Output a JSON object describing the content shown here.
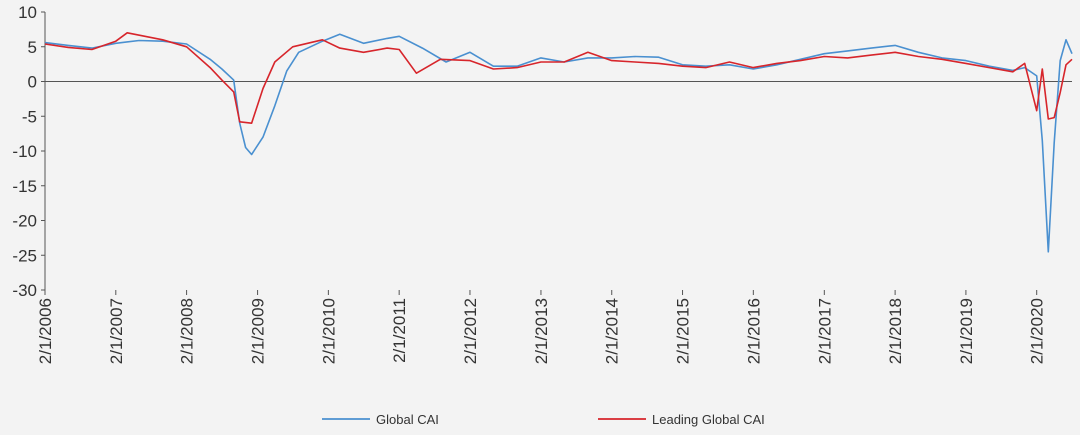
{
  "chart_data": {
    "type": "line",
    "title": "",
    "xlabel": "",
    "ylabel": "",
    "ylim": [
      -30,
      10
    ],
    "yticks": [
      10,
      5,
      0,
      -5,
      -10,
      -15,
      -20,
      -25,
      -30
    ],
    "xlim": [
      "2006-02-01",
      "2020-08-01"
    ],
    "xticks": [
      "2/1/2006",
      "2/1/2007",
      "2/1/2008",
      "2/1/2009",
      "2/1/2010",
      "2/1/2011",
      "2/1/2012",
      "2/1/2013",
      "2/1/2014",
      "2/1/2015",
      "2/1/2016",
      "2/1/2017",
      "2/1/2018",
      "2/1/2019",
      "2/1/2020"
    ],
    "grid": false,
    "legend_position": "bottom",
    "series": [
      {
        "name": "Global CAI",
        "color": "#4a90d0",
        "points": [
          [
            "2006-02-01",
            5.6
          ],
          [
            "2006-06-01",
            5.2
          ],
          [
            "2006-10-01",
            4.8
          ],
          [
            "2007-02-01",
            5.5
          ],
          [
            "2007-06-01",
            5.9
          ],
          [
            "2007-10-01",
            5.8
          ],
          [
            "2008-02-01",
            5.4
          ],
          [
            "2008-06-01",
            3.2
          ],
          [
            "2008-08-01",
            1.8
          ],
          [
            "2008-10-01",
            0.2
          ],
          [
            "2008-11-01",
            -6.0
          ],
          [
            "2008-12-01",
            -9.5
          ],
          [
            "2009-01-01",
            -10.5
          ],
          [
            "2009-03-01",
            -8.0
          ],
          [
            "2009-05-01",
            -3.5
          ],
          [
            "2009-07-01",
            1.5
          ],
          [
            "2009-09-01",
            4.2
          ],
          [
            "2010-01-01",
            5.8
          ],
          [
            "2010-04-01",
            6.8
          ],
          [
            "2010-08-01",
            5.5
          ],
          [
            "2010-12-01",
            6.2
          ],
          [
            "2011-02-01",
            6.5
          ],
          [
            "2011-06-01",
            4.8
          ],
          [
            "2011-10-01",
            2.8
          ],
          [
            "2012-02-01",
            4.2
          ],
          [
            "2012-06-01",
            2.2
          ],
          [
            "2012-10-01",
            2.2
          ],
          [
            "2013-02-01",
            3.4
          ],
          [
            "2013-06-01",
            2.8
          ],
          [
            "2013-10-01",
            3.4
          ],
          [
            "2014-02-01",
            3.4
          ],
          [
            "2014-06-01",
            3.6
          ],
          [
            "2014-10-01",
            3.5
          ],
          [
            "2015-02-01",
            2.4
          ],
          [
            "2015-06-01",
            2.2
          ],
          [
            "2015-10-01",
            2.4
          ],
          [
            "2016-02-01",
            1.8
          ],
          [
            "2016-06-01",
            2.4
          ],
          [
            "2016-10-01",
            3.2
          ],
          [
            "2017-02-01",
            4.0
          ],
          [
            "2017-06-01",
            4.4
          ],
          [
            "2017-10-01",
            4.8
          ],
          [
            "2018-02-01",
            5.2
          ],
          [
            "2018-06-01",
            4.2
          ],
          [
            "2018-10-01",
            3.4
          ],
          [
            "2019-02-01",
            3.0
          ],
          [
            "2019-06-01",
            2.2
          ],
          [
            "2019-10-01",
            1.6
          ],
          [
            "2019-12-01",
            2.0
          ],
          [
            "2020-02-01",
            0.8
          ],
          [
            "2020-03-01",
            -8.5
          ],
          [
            "2020-04-01",
            -24.5
          ],
          [
            "2020-05-01",
            -8.8
          ],
          [
            "2020-06-01",
            3.0
          ],
          [
            "2020-07-01",
            6.0
          ],
          [
            "2020-08-01",
            4.0
          ]
        ]
      },
      {
        "name": "Leading Global CAI",
        "color": "#d7252b",
        "points": [
          [
            "2006-02-01",
            5.4
          ],
          [
            "2006-06-01",
            4.9
          ],
          [
            "2006-10-01",
            4.6
          ],
          [
            "2007-02-01",
            5.8
          ],
          [
            "2007-04-01",
            7.0
          ],
          [
            "2007-10-01",
            6.0
          ],
          [
            "2008-02-01",
            5.0
          ],
          [
            "2008-06-01",
            2.0
          ],
          [
            "2008-08-01",
            0.2
          ],
          [
            "2008-10-01",
            -1.5
          ],
          [
            "2008-11-01",
            -5.8
          ],
          [
            "2009-01-01",
            -6.0
          ],
          [
            "2009-03-01",
            -1.0
          ],
          [
            "2009-05-01",
            2.8
          ],
          [
            "2009-08-01",
            5.0
          ],
          [
            "2010-01-01",
            6.0
          ],
          [
            "2010-04-01",
            4.8
          ],
          [
            "2010-08-01",
            4.2
          ],
          [
            "2010-12-01",
            4.8
          ],
          [
            "2011-02-01",
            4.6
          ],
          [
            "2011-05-01",
            1.2
          ],
          [
            "2011-09-01",
            3.2
          ],
          [
            "2012-02-01",
            3.0
          ],
          [
            "2012-06-01",
            1.8
          ],
          [
            "2012-10-01",
            2.0
          ],
          [
            "2013-02-01",
            2.8
          ],
          [
            "2013-06-01",
            2.8
          ],
          [
            "2013-10-01",
            4.2
          ],
          [
            "2014-02-01",
            3.0
          ],
          [
            "2014-06-01",
            2.8
          ],
          [
            "2014-10-01",
            2.6
          ],
          [
            "2015-02-01",
            2.2
          ],
          [
            "2015-06-01",
            2.0
          ],
          [
            "2015-10-01",
            2.8
          ],
          [
            "2016-02-01",
            2.0
          ],
          [
            "2016-06-01",
            2.6
          ],
          [
            "2016-10-01",
            3.0
          ],
          [
            "2017-02-01",
            3.6
          ],
          [
            "2017-06-01",
            3.4
          ],
          [
            "2017-10-01",
            3.8
          ],
          [
            "2018-02-01",
            4.2
          ],
          [
            "2018-06-01",
            3.6
          ],
          [
            "2018-10-01",
            3.2
          ],
          [
            "2019-02-01",
            2.6
          ],
          [
            "2019-06-01",
            2.0
          ],
          [
            "2019-10-01",
            1.4
          ],
          [
            "2019-12-01",
            2.6
          ],
          [
            "2020-02-01",
            -4.2
          ],
          [
            "2020-03-01",
            1.8
          ],
          [
            "2020-04-01",
            -5.4
          ],
          [
            "2020-05-01",
            -5.2
          ],
          [
            "2020-06-01",
            -1.6
          ],
          [
            "2020-07-01",
            2.4
          ],
          [
            "2020-08-01",
            3.2
          ]
        ]
      }
    ]
  }
}
